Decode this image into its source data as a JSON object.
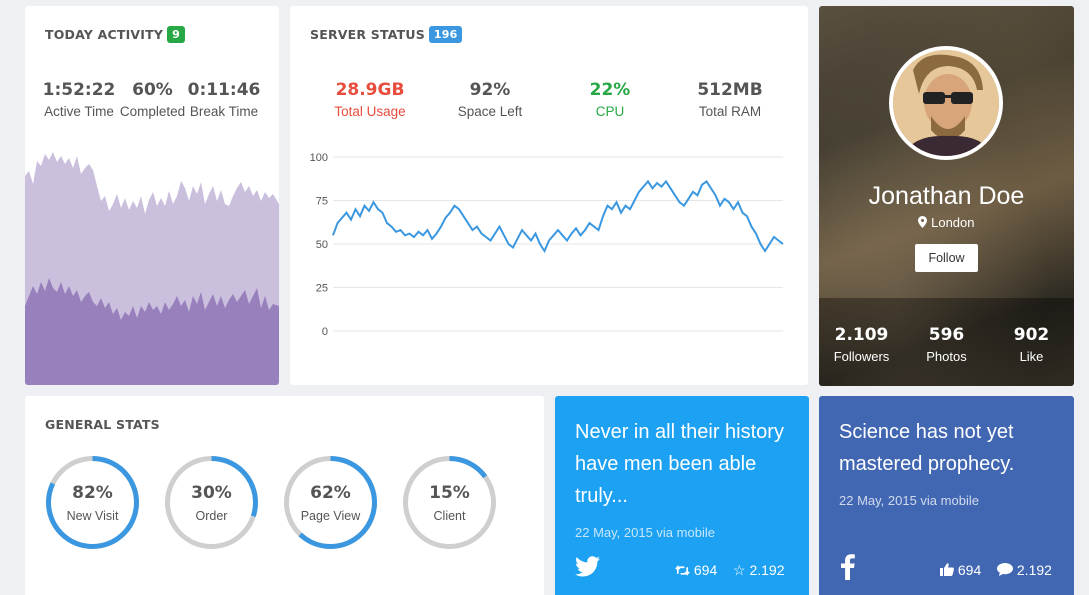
{
  "today_activity": {
    "title": "TODAY ACTIVITY",
    "badge": "9",
    "badge_color": "#27a844",
    "stats": [
      {
        "value": "1:52:22",
        "label": "Active Time"
      },
      {
        "value": "60%",
        "label": "Completed"
      },
      {
        "value": "0:11:46",
        "label": "Break Time"
      }
    ],
    "area_colors": [
      "#cbbfde",
      "#9880bc"
    ]
  },
  "server_status": {
    "title": "SERVER STATUS",
    "badge": "196",
    "badge_color": "#3b98e0",
    "stats": [
      {
        "value": "28.9GB",
        "label": "Total Usage",
        "color": "#e74c3c"
      },
      {
        "value": "92%",
        "label": "Space Left",
        "color": "#555555"
      },
      {
        "value": "22%",
        "label": "CPU",
        "color": "#27a844"
      },
      {
        "value": "512MB",
        "label": "Total RAM",
        "color": "#555555"
      }
    ]
  },
  "chart_data": {
    "type": "line",
    "title": "",
    "xlabel": "",
    "ylabel": "",
    "ylim": [
      0,
      100
    ],
    "yticks": [
      "100",
      "75",
      "50",
      "25",
      "0"
    ],
    "grid": true,
    "series": [
      {
        "color": "#3b98e0",
        "values": [
          55,
          62,
          65,
          68,
          64,
          70,
          66,
          72,
          69,
          74,
          70,
          68,
          62,
          60,
          57,
          58,
          55,
          56,
          54,
          57,
          55,
          58,
          53,
          56,
          60,
          65,
          68,
          72,
          70,
          66,
          62,
          58,
          60,
          56,
          54,
          52,
          56,
          60,
          55,
          50,
          48,
          53,
          58,
          55,
          52,
          56,
          50,
          46,
          52,
          55,
          58,
          55,
          52,
          56,
          59,
          55,
          58,
          62,
          60,
          58,
          66,
          72,
          70,
          74,
          68,
          72,
          70,
          75,
          80,
          83,
          86,
          82,
          85,
          83,
          86,
          82,
          78,
          74,
          72,
          76,
          80,
          78,
          84,
          86,
          82,
          78,
          72,
          76,
          74,
          70,
          74,
          68,
          66,
          60,
          56,
          50,
          46,
          50,
          54,
          52,
          50
        ]
      }
    ]
  },
  "profile": {
    "name": "Jonathan Doe",
    "location": "London",
    "follow_label": "Follow",
    "stats": [
      {
        "value": "2.109",
        "label": "Followers"
      },
      {
        "value": "596",
        "label": "Photos"
      },
      {
        "value": "902",
        "label": "Like"
      }
    ]
  },
  "general_stats": {
    "title": "GENERAL STATS",
    "items": [
      {
        "value": "82%",
        "label": "New Visit",
        "fraction": 0.82
      },
      {
        "value": "30%",
        "label": "Order",
        "fraction": 0.3
      },
      {
        "value": "62%",
        "label": "Page View",
        "fraction": 0.62
      },
      {
        "value": "15%",
        "label": "Client",
        "fraction": 0.15
      }
    ],
    "ring_color": "#3b98e0",
    "track_color": "#cfcfcf"
  },
  "twitter_card": {
    "quote": "Never in all their history have men been able truly...",
    "meta": "22 May, 2015 via mobile",
    "retweets": "694",
    "favorites": "2.192",
    "bg_color": "#1da1f2"
  },
  "facebook_card": {
    "quote": "Science has not yet mastered prophecy.",
    "meta": "22 May, 2015 via mobile",
    "likes": "694",
    "comments": "2.192",
    "bg_color": "#4267b2"
  }
}
